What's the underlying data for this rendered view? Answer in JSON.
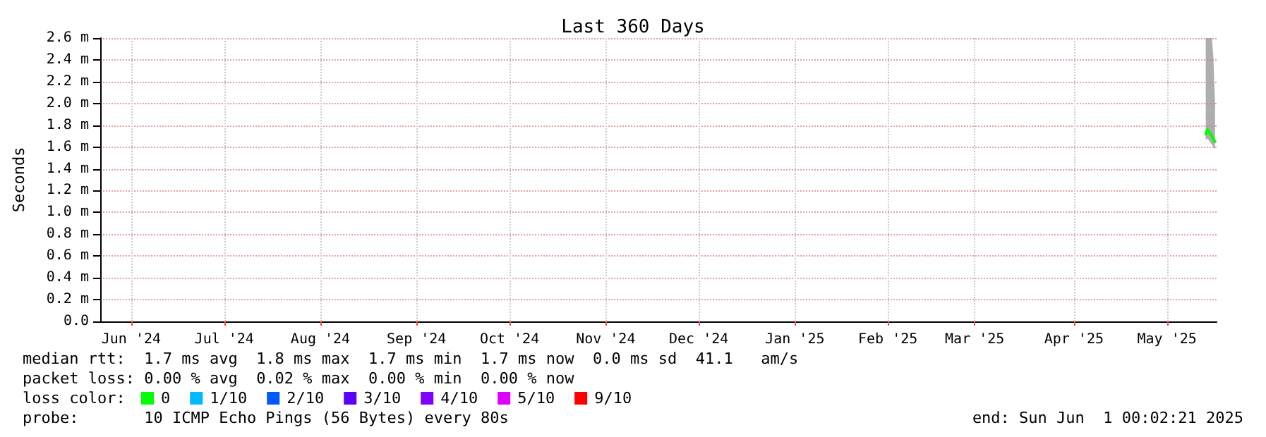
{
  "chart_data": {
    "type": "line",
    "title": "Last 360 Days",
    "ylabel": "Seconds",
    "legend_title": "loss color:",
    "legend": "bottom",
    "grid": true,
    "marker": "none",
    "line_style": "solid",
    "xlim": [
      "2024-06-06",
      "2025-06-01"
    ],
    "xticks": [
      {
        "value": "2024-06-16",
        "label": "Jun '24"
      },
      {
        "value": "2024-07-16",
        "label": "Jul '24"
      },
      {
        "value": "2024-08-16",
        "label": "Aug '24"
      },
      {
        "value": "2024-09-16",
        "label": "Sep '24"
      },
      {
        "value": "2024-10-16",
        "label": "Oct '24"
      },
      {
        "value": "2024-11-16",
        "label": "Nov '24"
      },
      {
        "value": "2024-12-16",
        "label": "Dec '24"
      },
      {
        "value": "2025-01-16",
        "label": "Jan '25"
      },
      {
        "value": "2025-02-15",
        "label": "Feb '25"
      },
      {
        "value": "2025-03-15",
        "label": "Mar '25"
      },
      {
        "value": "2025-04-16",
        "label": "Apr '25"
      },
      {
        "value": "2025-05-16",
        "label": "May '25"
      }
    ],
    "ylim": [
      0,
      2.6
    ],
    "yticks": [
      {
        "value": 0,
        "label": "0.0"
      },
      {
        "value": 0.2,
        "label": "0.2 m"
      },
      {
        "value": 0.4,
        "label": "0.4 m"
      },
      {
        "value": 0.6,
        "label": "0.6 m"
      },
      {
        "value": 0.8,
        "label": "0.8 m"
      },
      {
        "value": 1.0,
        "label": "1.0 m"
      },
      {
        "value": 1.2,
        "label": "1.2 m"
      },
      {
        "value": 1.4,
        "label": "1.4 m"
      },
      {
        "value": 1.6,
        "label": "1.6 m"
      },
      {
        "value": 1.8,
        "label": "1.8 m"
      },
      {
        "value": 2.0,
        "label": "2.0 m"
      },
      {
        "value": 2.2,
        "label": "2.2 m"
      },
      {
        "value": 2.4,
        "label": "2.4 m"
      },
      {
        "value": 2.6,
        "label": "2.6 m"
      }
    ],
    "series": [
      {
        "name": "0",
        "color": "#00ff00",
        "x": [
          "2025-05-28T12:00",
          "2025-05-29",
          "2025-05-29T12:00",
          "2025-05-30",
          "2025-05-30T12:00",
          "2025-05-31",
          "2025-05-31T12:00"
        ],
        "values": [
          1.72,
          1.76,
          1.74,
          1.72,
          1.7,
          1.67,
          1.65
        ],
        "lower": [
          1.66,
          1.68,
          1.66,
          1.64,
          1.62,
          1.6,
          1.58
        ],
        "upper": [
          2.6,
          2.6,
          2.6,
          2.6,
          2.6,
          2.4,
          2.0
        ]
      },
      {
        "name": "1/10",
        "color": "#00b8ff"
      },
      {
        "name": "2/10",
        "color": "#0059ff"
      },
      {
        "name": "3/10",
        "color": "#5e00ff"
      },
      {
        "name": "4/10",
        "color": "#7e00ff"
      },
      {
        "name": "5/10",
        "color": "#dd00ff"
      },
      {
        "name": "9/10",
        "color": "#ff0000"
      }
    ],
    "annotations": [
      "median rtt:  1.7 ms avg  1.8 ms max  1.7 ms min  1.7 ms now  0.0 ms sd  41.1   am/s",
      "packet loss: 0.00 % avg  0.02 % max  0.00 % min  0.00 % now",
      "probe:       10 ICMP Echo Pings (56 Bytes) every 80s",
      "end: Sun Jun  1 00:02:21 2025"
    ]
  }
}
